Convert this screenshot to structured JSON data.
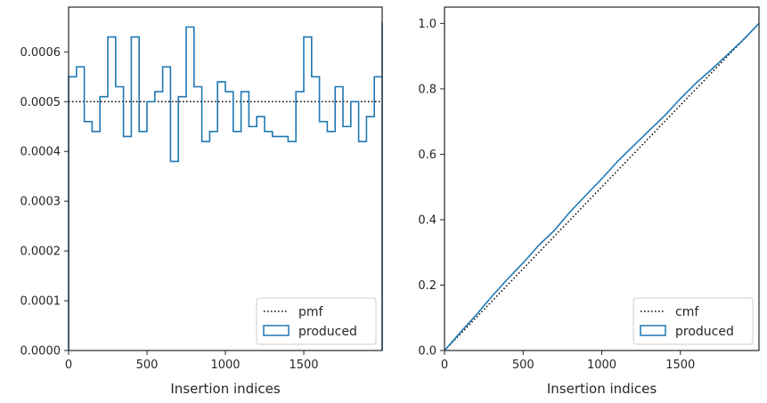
{
  "chart_data": [
    {
      "type": "step",
      "xlabel": "Insertion indices",
      "ylabel": "",
      "xlim": [
        0,
        2000
      ],
      "ylim": [
        0,
        0.00069
      ],
      "xticks": [
        0,
        500,
        1000,
        1500
      ],
      "xtick_labels": [
        "0",
        "500",
        "1000",
        "1500"
      ],
      "yticks": [
        0,
        0.0001,
        0.0002,
        0.0003,
        0.0004,
        0.0005,
        0.0006
      ],
      "ytick_labels": [
        "0.0000",
        "0.0001",
        "0.0002",
        "0.0003",
        "0.0004",
        "0.0005",
        "0.0006"
      ],
      "legend_position": "lower-right",
      "reference": {
        "name": "pmf",
        "style": "dotted",
        "color": "#000000",
        "value": 0.0005
      },
      "series": [
        {
          "name": "produced",
          "color": "#1f77b4",
          "bin_width": 50,
          "values": [
            0.00055,
            0.00057,
            0.00046,
            0.00044,
            0.00051,
            0.00063,
            0.00053,
            0.00043,
            0.00063,
            0.00044,
            0.0005,
            0.00052,
            0.00057,
            0.00038,
            0.00051,
            0.00065,
            0.00053,
            0.00042,
            0.00044,
            0.00054,
            0.00052,
            0.00044,
            0.00052,
            0.00045,
            0.00047,
            0.00044,
            0.00043,
            0.00043,
            0.00042,
            0.00052,
            0.00063,
            0.00055,
            0.00046,
            0.00044,
            0.00053,
            0.00045,
            0.0005,
            0.00042,
            0.00047,
            0.00055,
            0.00066
          ]
        }
      ]
    },
    {
      "type": "step",
      "xlabel": "Insertion indices",
      "ylabel": "",
      "xlim": [
        0,
        2000
      ],
      "ylim": [
        0,
        1.05
      ],
      "xticks": [
        0,
        500,
        1000,
        1500
      ],
      "xtick_labels": [
        "0",
        "500",
        "1000",
        "1500"
      ],
      "yticks": [
        0,
        0.2,
        0.4,
        0.6,
        0.8,
        1.0
      ],
      "ytick_labels": [
        "0.0",
        "0.2",
        "0.4",
        "0.6",
        "0.8",
        "1.0"
      ],
      "legend_position": "lower-right",
      "reference": {
        "name": "cmf",
        "style": "dotted",
        "color": "#000000",
        "x": [
          0,
          2000
        ],
        "y": [
          0,
          1.0
        ]
      },
      "series": [
        {
          "name": "produced",
          "color": "#1f77b4",
          "x": [
            0,
            100,
            200,
            300,
            400,
            500,
            600,
            700,
            800,
            900,
            1000,
            1100,
            1200,
            1300,
            1400,
            1500,
            1600,
            1700,
            1800,
            1900,
            2000
          ],
          "y": [
            0,
            0.055,
            0.108,
            0.165,
            0.218,
            0.268,
            0.322,
            0.368,
            0.425,
            0.475,
            0.525,
            0.578,
            0.625,
            0.672,
            0.718,
            0.77,
            0.818,
            0.86,
            0.905,
            0.95,
            1.0
          ]
        }
      ]
    }
  ]
}
